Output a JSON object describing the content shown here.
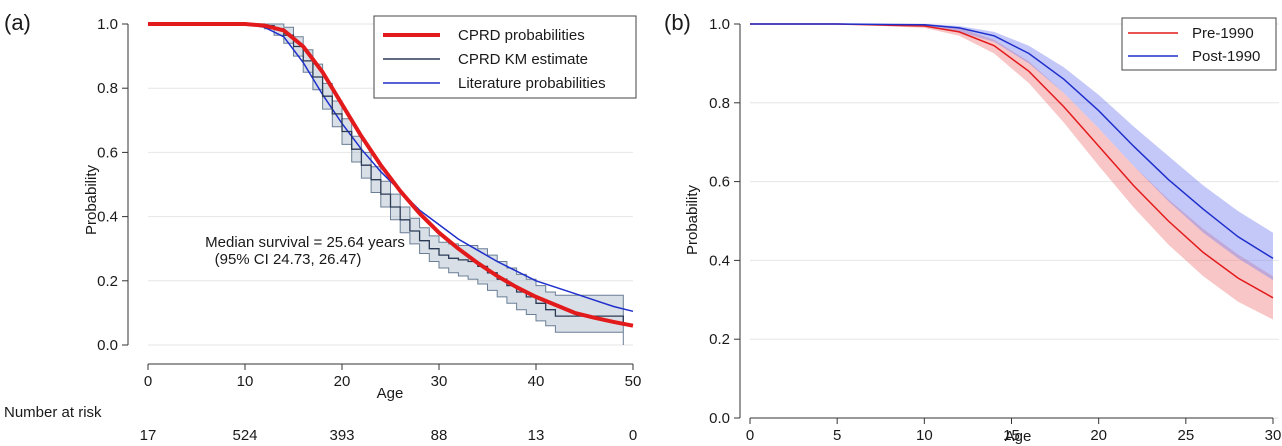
{
  "chart_data": [
    {
      "type": "line",
      "panel_label": "(a)",
      "xlabel": "Age",
      "ylabel": "Probability",
      "xlim": [
        0,
        50
      ],
      "ylim": [
        0,
        1
      ],
      "xticks": [
        0,
        10,
        20,
        30,
        40,
        50
      ],
      "yticks": [
        0,
        0.2,
        0.4,
        0.6,
        0.8,
        1
      ],
      "x_tick_labels": [
        "0",
        "10",
        "20",
        "30",
        "40",
        "50"
      ],
      "y_tick_labels": [
        "0.0",
        "0.2",
        "0.4",
        "0.6",
        "0.8",
        "1.0"
      ],
      "grid": "horizontal",
      "legend": {
        "position": "top-right",
        "entries": [
          "CPRD probabilities",
          "CPRD KM estimate",
          "Literature probabilities"
        ]
      },
      "annotation": {
        "line1": "Median survival = 25.64 years",
        "line2": "(95% CI 24.73, 26.47)"
      },
      "number_at_risk": {
        "label": "Number at risk",
        "ages": [
          0,
          10,
          20,
          30,
          40,
          50
        ],
        "counts": [
          "17",
          "524",
          "393",
          "88",
          "13",
          "0"
        ]
      },
      "series": [
        {
          "name": "CPRD probabilities",
          "style": "line",
          "color": "#e31a1c",
          "x": [
            0,
            5,
            10,
            12,
            14,
            16,
            18,
            20,
            22,
            24,
            26,
            28,
            30,
            32,
            34,
            36,
            38,
            40,
            42,
            44,
            46,
            48,
            50
          ],
          "y": [
            1.0,
            1.0,
            1.0,
            0.995,
            0.98,
            0.93,
            0.85,
            0.75,
            0.65,
            0.56,
            0.48,
            0.41,
            0.35,
            0.3,
            0.255,
            0.215,
            0.18,
            0.15,
            0.125,
            0.1,
            0.085,
            0.072,
            0.06
          ]
        },
        {
          "name": "CPRD KM estimate",
          "style": "step",
          "color": "#2b3a55",
          "x": [
            0,
            12,
            13,
            14,
            15,
            16,
            17,
            18,
            19,
            20,
            21,
            22,
            23,
            24,
            25,
            26,
            27,
            28,
            29,
            30,
            31,
            32,
            33,
            34,
            35,
            36,
            37,
            38,
            39,
            40,
            41,
            42,
            49
          ],
          "y": [
            1.0,
            0.995,
            0.985,
            0.965,
            0.93,
            0.885,
            0.835,
            0.775,
            0.72,
            0.665,
            0.61,
            0.56,
            0.515,
            0.47,
            0.43,
            0.39,
            0.355,
            0.325,
            0.3,
            0.28,
            0.27,
            0.265,
            0.26,
            0.245,
            0.225,
            0.205,
            0.185,
            0.165,
            0.15,
            0.13,
            0.11,
            0.09,
            0.06
          ],
          "ci_lower": [
            1.0,
            0.985,
            0.965,
            0.94,
            0.9,
            0.85,
            0.795,
            0.735,
            0.68,
            0.625,
            0.57,
            0.52,
            0.475,
            0.43,
            0.39,
            0.35,
            0.315,
            0.285,
            0.26,
            0.24,
            0.225,
            0.215,
            0.205,
            0.19,
            0.17,
            0.15,
            0.13,
            0.11,
            0.095,
            0.075,
            0.06,
            0.04,
            0.0
          ],
          "ci_upper": [
            1.0,
            1.0,
            1.0,
            0.99,
            0.96,
            0.92,
            0.875,
            0.815,
            0.76,
            0.705,
            0.65,
            0.6,
            0.555,
            0.51,
            0.47,
            0.43,
            0.395,
            0.365,
            0.34,
            0.32,
            0.315,
            0.31,
            0.31,
            0.3,
            0.28,
            0.26,
            0.24,
            0.22,
            0.205,
            0.185,
            0.165,
            0.155,
            0.155
          ]
        },
        {
          "name": "Literature probabilities",
          "style": "line",
          "color": "#1f2fcc",
          "x": [
            0,
            5,
            10,
            12,
            14,
            16,
            18,
            20,
            22,
            24,
            26,
            28,
            30,
            32,
            34,
            36,
            38,
            40,
            42,
            44,
            46,
            48,
            50
          ],
          "y": [
            1.0,
            1.0,
            1.0,
            0.99,
            0.96,
            0.88,
            0.78,
            0.69,
            0.61,
            0.54,
            0.48,
            0.42,
            0.375,
            0.33,
            0.295,
            0.26,
            0.23,
            0.2,
            0.18,
            0.16,
            0.14,
            0.12,
            0.105
          ]
        }
      ]
    },
    {
      "type": "line",
      "panel_label": "(b)",
      "xlabel": "Age",
      "ylabel": "Probability",
      "xlim": [
        0,
        30
      ],
      "ylim": [
        0,
        1
      ],
      "xticks": [
        0,
        5,
        10,
        15,
        20,
        25,
        30
      ],
      "yticks": [
        0,
        0.2,
        0.4,
        0.6,
        0.8,
        1
      ],
      "x_tick_labels": [
        "0",
        "5",
        "10",
        "15",
        "20",
        "25",
        "30"
      ],
      "y_tick_labels": [
        "0.0",
        "0.2",
        "0.4",
        "0.6",
        "0.8",
        "1.0"
      ],
      "grid": "horizontal",
      "legend": {
        "position": "top-right",
        "entries": [
          "Pre-1990",
          "Post-1990"
        ]
      },
      "series": [
        {
          "name": "Pre-1990",
          "color": "#e31a1c",
          "band_color": "#f08080",
          "x": [
            0,
            5,
            10,
            12,
            14,
            16,
            18,
            20,
            22,
            24,
            26,
            28,
            30
          ],
          "y": [
            1.0,
            1.0,
            0.995,
            0.98,
            0.945,
            0.88,
            0.79,
            0.69,
            0.59,
            0.5,
            0.42,
            0.355,
            0.305
          ],
          "ci_lower": [
            1.0,
            1.0,
            0.99,
            0.97,
            0.925,
            0.85,
            0.75,
            0.64,
            0.535,
            0.44,
            0.36,
            0.295,
            0.25
          ],
          "ci_upper": [
            1.0,
            1.0,
            1.0,
            0.99,
            0.96,
            0.905,
            0.825,
            0.735,
            0.64,
            0.555,
            0.48,
            0.415,
            0.36
          ]
        },
        {
          "name": "Post-1990",
          "color": "#1f2fcc",
          "band_color": "#7c86f0",
          "x": [
            0,
            5,
            10,
            12,
            14,
            16,
            18,
            20,
            22,
            24,
            26,
            28,
            30
          ],
          "y": [
            1.0,
            1.0,
            0.998,
            0.99,
            0.97,
            0.925,
            0.86,
            0.78,
            0.69,
            0.605,
            0.53,
            0.46,
            0.405
          ],
          "ci_lower": [
            1.0,
            1.0,
            0.995,
            0.98,
            0.955,
            0.9,
            0.825,
            0.735,
            0.64,
            0.55,
            0.47,
            0.405,
            0.35
          ],
          "ci_upper": [
            1.0,
            1.0,
            1.0,
            0.995,
            0.98,
            0.945,
            0.89,
            0.82,
            0.74,
            0.665,
            0.59,
            0.525,
            0.47
          ]
        }
      ]
    }
  ]
}
